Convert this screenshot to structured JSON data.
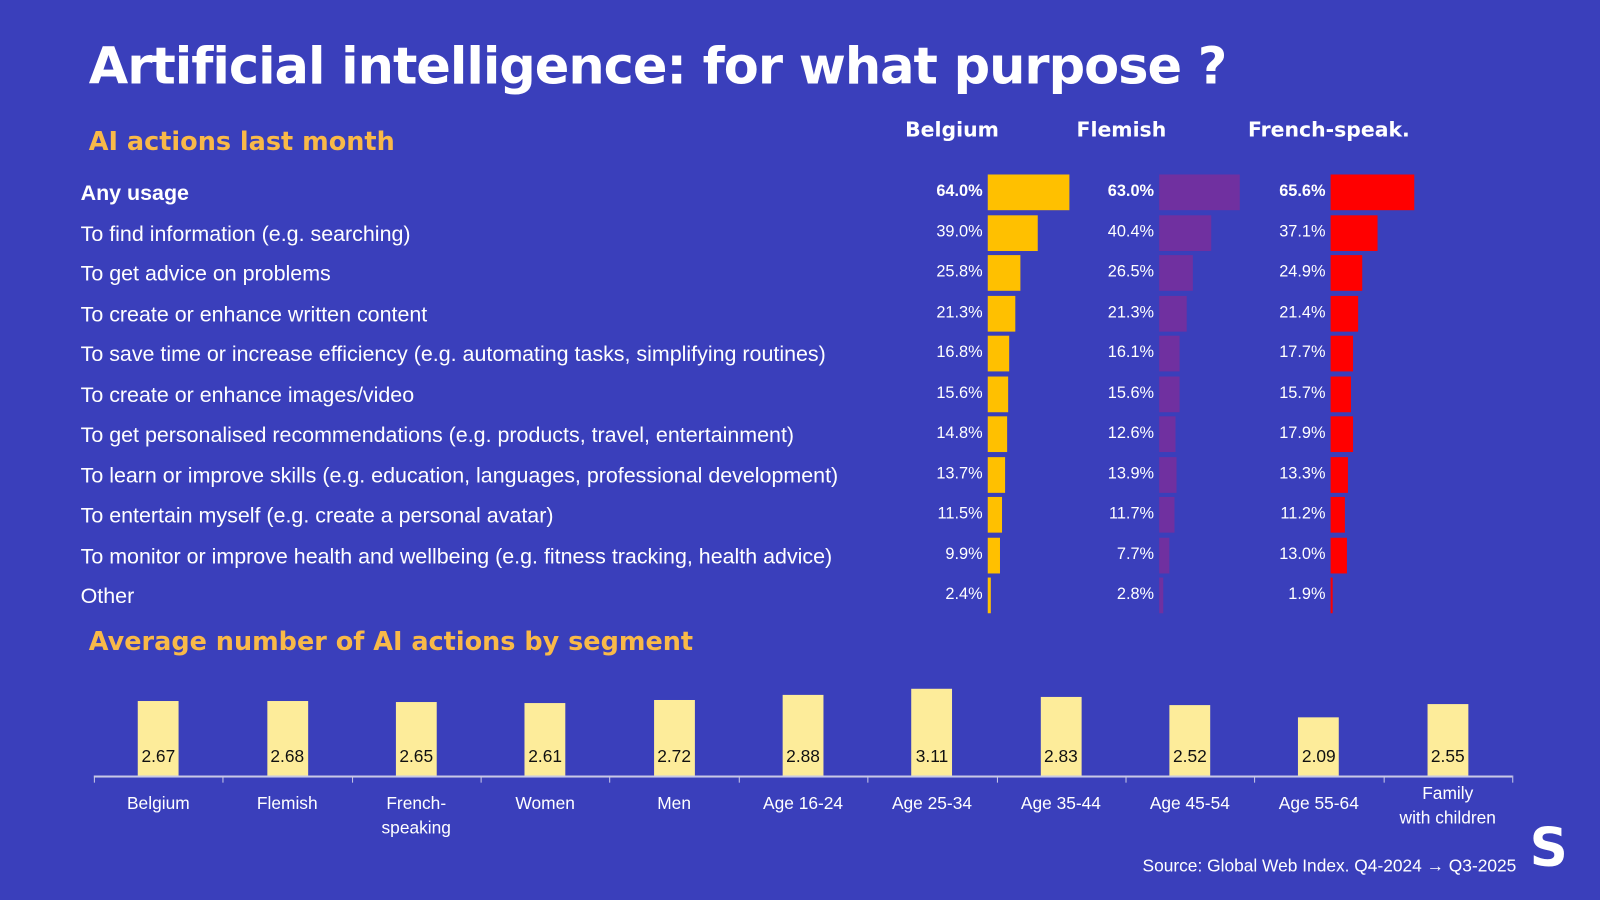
{
  "title": "Artificial intelligence: for what purpose ?",
  "source": "Source: Global Web Index. Q4-2024 → Q3-2025",
  "logo_text": "S",
  "chart_data": [
    {
      "type": "bar",
      "orientation": "horizontal",
      "title": "AI actions last month",
      "unit": "%",
      "categories": [
        "Any usage",
        "To find information (e.g. searching)",
        "To get advice on problems",
        "To create or enhance written content",
        "To save time or increase efficiency (e.g. automating tasks, simplifying routines)",
        "To create or enhance images/video",
        "To get personalised recommendations (e.g. products, travel, entertainment)",
        "To learn or improve skills (e.g. education, languages, professional development)",
        "To entertain myself (e.g. create a personal avatar)",
        "To monitor or improve health and wellbeing (e.g. fitness tracking, health advice)",
        "Other"
      ],
      "series": [
        {
          "name": "Belgium",
          "color": "#ffc000",
          "values": [
            64.0,
            39.0,
            25.8,
            21.3,
            16.8,
            15.6,
            14.8,
            13.7,
            11.5,
            9.9,
            2.4
          ]
        },
        {
          "name": "Flemish",
          "color": "#7030a0",
          "values": [
            63.0,
            40.4,
            26.5,
            21.3,
            16.1,
            15.6,
            12.6,
            13.9,
            11.7,
            7.7,
            2.8
          ]
        },
        {
          "name": "French-speak.",
          "color": "#ff0000",
          "values": [
            65.6,
            37.1,
            24.9,
            21.4,
            17.7,
            15.7,
            17.9,
            13.3,
            11.2,
            13.0,
            1.9
          ]
        }
      ]
    },
    {
      "type": "bar",
      "title": "Average number of AI actions by segment",
      "color": "#fdec9a",
      "categories": [
        "Belgium",
        "Flemish",
        "French-\nspeaking",
        "Women",
        "Men",
        "Age 16-24",
        "Age 25-34",
        "Age 35-44",
        "Age 45-54",
        "Age 55-64",
        "Family\nwith children"
      ],
      "values": [
        2.67,
        2.68,
        2.65,
        2.61,
        2.72,
        2.88,
        3.11,
        2.83,
        2.52,
        2.09,
        2.55
      ]
    }
  ]
}
